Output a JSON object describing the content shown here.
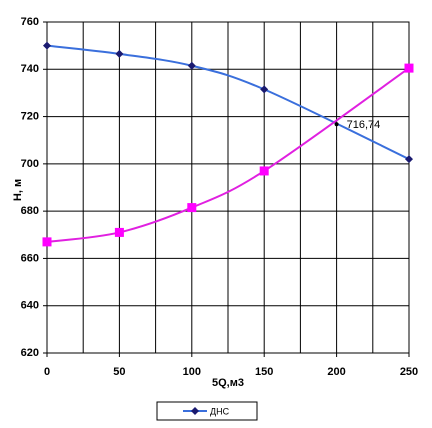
{
  "chart_data": {
    "type": "line",
    "x_label": "5Q,м3",
    "y_label": "Н, м",
    "x": [
      0,
      50,
      100,
      150,
      250
    ],
    "series": [
      {
        "name": "ДНС",
        "color": "#3a6fdc",
        "marker_color": "#1a1a70",
        "marker": "diamond",
        "values": [
          750,
          746.5,
          741.5,
          731.5,
          702
        ]
      },
      {
        "color": "#e020e0",
        "marker_color": "#ff00ff",
        "marker": "square",
        "values": [
          667,
          671,
          681.5,
          697,
          740.5
        ]
      }
    ],
    "annotations": [
      {
        "text": "716,74",
        "x": 200,
        "y": 716.74
      }
    ],
    "xlim": [
      0,
      250
    ],
    "xticks": [
      0,
      50,
      100,
      150,
      200,
      250
    ],
    "xgrid": [
      0,
      25,
      50,
      75,
      100,
      125,
      150,
      175,
      200,
      225,
      250
    ],
    "ylim": [
      620,
      760
    ],
    "yticks": [
      620,
      640,
      660,
      680,
      700,
      720,
      740,
      760
    ],
    "grid": true,
    "legend": "bottom"
  }
}
